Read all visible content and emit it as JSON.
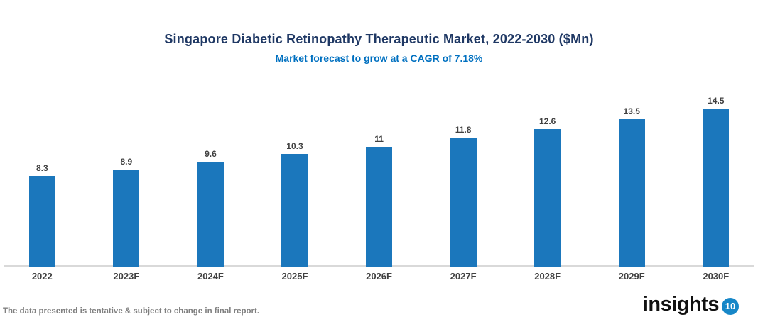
{
  "header": {
    "title": "Singapore Diabetic Retinopathy Therapeutic Market, 2022-2030 ($Mn)",
    "subtitle": "Market forecast to grow at a CAGR of 7.18%"
  },
  "chart_data": {
    "type": "bar",
    "categories": [
      "2022",
      "2023F",
      "2024F",
      "2025F",
      "2026F",
      "2027F",
      "2028F",
      "2029F",
      "2030F"
    ],
    "values": [
      8.3,
      8.9,
      9.6,
      10.3,
      11,
      11.8,
      12.6,
      13.5,
      14.5
    ],
    "value_labels": [
      "8.3",
      "8.9",
      "9.6",
      "10.3",
      "11",
      "11.8",
      "12.6",
      "13.5",
      "14.5"
    ],
    "title": "Singapore Diabetic Retinopathy Therapeutic Market, 2022-2030 ($Mn)",
    "subtitle": "Market forecast to grow at a CAGR of 7.18%",
    "xlabel": "",
    "ylabel": "",
    "ylim": [
      0,
      16
    ],
    "grid": false,
    "legend": false,
    "bar_color": "#1B77BC"
  },
  "footer": {
    "disclaimer": "The data presented is tentative & subject to change in final report.",
    "logo_text": "insights",
    "logo_badge": "10"
  },
  "colors": {
    "title": "#1F3864",
    "subtitle": "#0070C0",
    "bar": "#1B77BC",
    "value_label": "#404040",
    "axis_label": "#404040",
    "axis_line": "#D9D9D9",
    "footer_text": "#808080",
    "logo_badge_bg": "#1787C8"
  }
}
